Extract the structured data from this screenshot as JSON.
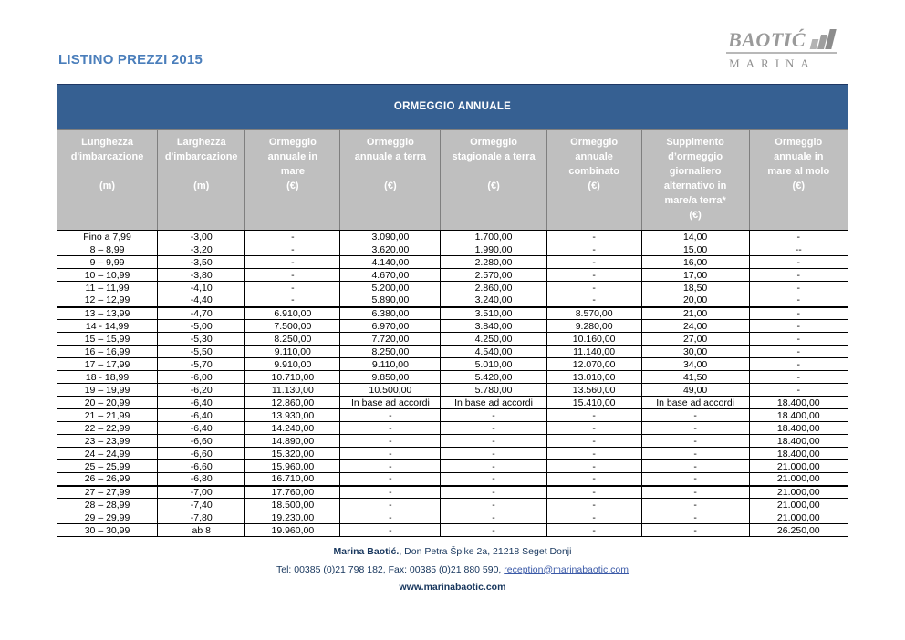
{
  "page": {
    "title": "LISTINO PREZZI 2015"
  },
  "logo": {
    "brand": "BAOTIĆ",
    "subtitle": "MARINA",
    "bars_icon": "ascending-bars"
  },
  "colors": {
    "band_blue": "#366092",
    "band_border": "#1f3864",
    "header_gray": "#bfbfbf",
    "title_blue": "#4a7ebb",
    "footer_navy": "#17365d",
    "link_blue": "#3b5aa8"
  },
  "table": {
    "band_title": "ORMEGGIO ANNUALE",
    "columns": [
      {
        "label": "Lunghezza\nd'imbarcazione\n\n(m)"
      },
      {
        "label": "Larghezza\nd'imbarcazione\n\n(m)"
      },
      {
        "label": "Ormeggio\nannuale in\nmare\n(€)"
      },
      {
        "label": "Ormeggio\nannuale a terra\n\n(€)"
      },
      {
        "label": "Ormeggio\nstagionale a terra\n\n(€)"
      },
      {
        "label": "Ormeggio\nannuale\ncombinato\n(€)"
      },
      {
        "label": "Supplmento\nd’ormeggio\ngiornaliero\nalternativo in\nmare/a terra*\n(€)"
      },
      {
        "label": "Ormeggio\nannuale in\nmare al molo\n(€)"
      }
    ],
    "rows": [
      [
        "Fino a 7,99",
        "-3,00",
        "-",
        "3.090,00",
        "1.700,00",
        "-",
        "14,00",
        "-"
      ],
      [
        "8 – 8,99",
        "-3,20",
        "-",
        "3.620,00",
        "1.990,00",
        "-",
        "15,00",
        "--"
      ],
      [
        "9 – 9,99",
        "-3,50",
        "-",
        "4.140,00",
        "2.280,00",
        "-",
        "16,00",
        "-"
      ],
      [
        "10 – 10,99",
        "-3,80",
        "-",
        "4.670,00",
        "2.570,00",
        "-",
        "17,00",
        "-"
      ],
      [
        "11 – 11,99",
        "-4,10",
        "-",
        "5.200,00",
        "2.860,00",
        "-",
        "18,50",
        "-"
      ],
      [
        "12 – 12,99",
        "-4,40",
        "-",
        "5.890,00",
        "3.240,00",
        "-",
        "20,00",
        "-"
      ],
      [
        "13 – 13,99",
        "-4,70",
        "6.910,00",
        "6.380,00",
        "3.510,00",
        "8.570,00",
        "21,00",
        "-"
      ],
      [
        "14 - 14,99",
        "-5,00",
        "7.500,00",
        "6.970,00",
        "3.840,00",
        "9.280,00",
        "24,00",
        "-"
      ],
      [
        "15 – 15,99",
        "-5,30",
        "8.250,00",
        "7.720,00",
        "4.250,00",
        "10.160,00",
        "27,00",
        "-"
      ],
      [
        "16 – 16,99",
        "-5,50",
        "9.110,00",
        "8.250,00",
        "4.540,00",
        "11.140,00",
        "30,00",
        "-"
      ],
      [
        "17 – 17,99",
        "-5,70",
        "9.910,00",
        "9.110,00",
        "5.010,00",
        "12.070,00",
        "34,00",
        "-"
      ],
      [
        "18 - 18,99",
        "-6,00",
        "10.710,00",
        "9.850,00",
        "5.420,00",
        "13.010,00",
        "41,50",
        "-"
      ],
      [
        "19 – 19,99",
        "-6,20",
        "11.130,00",
        "10.500,00",
        "5.780,00",
        "13.560,00",
        "49,00",
        "-"
      ],
      [
        "20 – 20,99",
        "-6,40",
        "12.860,00",
        "In base ad accordi",
        "In base ad accordi",
        "15.410,00",
        "In base ad accordi",
        "18.400,00"
      ],
      [
        "21 – 21,99",
        "-6,40",
        "13.930,00",
        "-",
        "-",
        "-",
        "-",
        "18.400,00"
      ],
      [
        "22 – 22,99",
        "-6,40",
        "14.240,00",
        "-",
        "-",
        "-",
        "-",
        "18.400,00"
      ],
      [
        "23 – 23,99",
        "-6,60",
        "14.890,00",
        "-",
        "-",
        "-",
        "-",
        "18.400,00"
      ],
      [
        "24 – 24,99",
        "-6,60",
        "15.320,00",
        "-",
        "-",
        "-",
        "-",
        "18.400,00"
      ],
      [
        "25 – 25,99",
        "-6,60",
        "15.960,00",
        "-",
        "-",
        "-",
        "-",
        "21.000,00"
      ],
      [
        "26 – 26,99",
        "-6,80",
        "16.710,00",
        "-",
        "-",
        "-",
        "-",
        "21.000,00"
      ],
      [
        "27 – 27,99",
        "-7,00",
        "17.760,00",
        "-",
        "-",
        "-",
        "-",
        "21.000,00"
      ],
      [
        "28 – 28,99",
        "-7,40",
        "18.500,00",
        "-",
        "-",
        "-",
        "-",
        "21.000,00"
      ],
      [
        "29 – 29,99",
        "-7,80",
        "19.230,00",
        "-",
        "-",
        "-",
        "-",
        "21.000,00"
      ],
      [
        "30 – 30,99",
        "ab 8",
        "19.960,00",
        "-",
        "-",
        "-",
        "-",
        "26.250,00"
      ]
    ],
    "thick_border_after_rows": [
      5,
      19
    ]
  },
  "footer": {
    "org_bold": "Marina Baotić.",
    "address_rest": ", Don Petra Špike 2a, 21218 Seget Donji",
    "tel_fax": "Tel: 00385 (0)21 798 182, Fax: 00385 (0)21 880 590, ",
    "email": "reception@marinabaotic.com",
    "website": "www.marinabaotic.com"
  }
}
